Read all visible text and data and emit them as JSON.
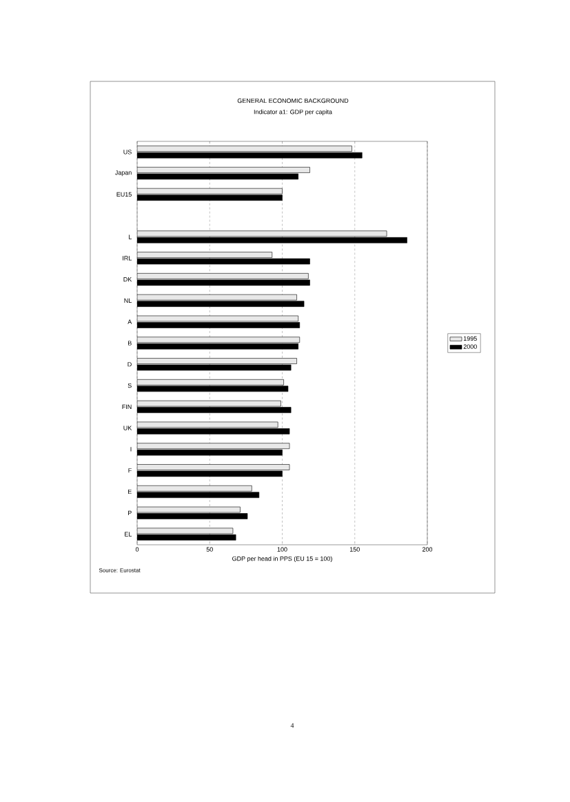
{
  "chart_data": {
    "type": "bar",
    "orientation": "horizontal",
    "title": "GENERAL ECONOMIC BACKGROUND",
    "subtitle": "Indicator a1: GDP per capita",
    "xlabel": "GDP per head in PPS (EU 15 = 100)",
    "categories": [
      "US",
      "Japan",
      "EU15",
      null,
      "L",
      "IRL",
      "DK",
      "NL",
      "A",
      "B",
      "D",
      "S",
      "FIN",
      "UK",
      "I",
      "F",
      "E",
      "P",
      "EL"
    ],
    "series": [
      {
        "name": "1995",
        "color": "#e8e8e8",
        "values": [
          148,
          119,
          100,
          null,
          172,
          93,
          118,
          110,
          111,
          112,
          110,
          101,
          99,
          97,
          105,
          105,
          79,
          71,
          66
        ]
      },
      {
        "name": "2000",
        "color": "#000000",
        "values": [
          155,
          111,
          100,
          null,
          186,
          119,
          119,
          115,
          112,
          111,
          106,
          104,
          106,
          105,
          100,
          100,
          84,
          76,
          68
        ]
      }
    ],
    "xlim": [
      0,
      200
    ],
    "xticks": [
      0,
      50,
      100,
      150,
      200
    ],
    "grid": "x",
    "legend": "right",
    "annotations": [
      "Source: Eurostat",
      "4"
    ]
  }
}
